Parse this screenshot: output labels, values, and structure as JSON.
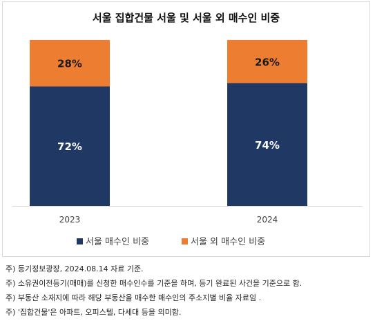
{
  "chart_data": {
    "type": "bar",
    "stacked": true,
    "percent": true,
    "title": "서울 집합건물 서울 및 서울 외 매수인 비중",
    "categories": [
      "2023",
      "2024"
    ],
    "series": [
      {
        "name": "서울 매수인 비중",
        "values": [
          72,
          74
        ],
        "labels": [
          "72%",
          "74%"
        ],
        "color": "#203864"
      },
      {
        "name": "서울 외 매수인 비중",
        "values": [
          28,
          26
        ],
        "labels": [
          "28%",
          "26%"
        ],
        "color": "#ED7D31"
      }
    ],
    "ylim": [
      0,
      100
    ],
    "legend_position": "bottom",
    "grid": false
  },
  "notes": [
    "주) 등기정보광장, 2024.08.14 자료 기준.",
    "주) 소유권이전등기(매매)를 신청한 매수인수를 기준을 하며, 등기 완료된 사건을 기준으로 함.",
    "주) 부동산 소재지에 따라 해당 부동산을 매수한 매수인의 주소지별 비율 자료임 .",
    "주) '집합건물'은 아파트, 오피스텔, 다세대 등을 의미함."
  ]
}
